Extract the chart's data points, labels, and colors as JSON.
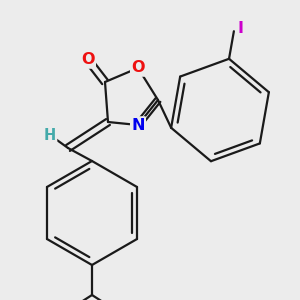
{
  "bg_color": "#ececec",
  "bond_color": "#1a1a1a",
  "line_width": 1.6,
  "atom_colors": {
    "O": "#ee1111",
    "N": "#0000ee",
    "I": "#cc00cc",
    "H": "#44aaaa",
    "C": "#1a1a1a"
  },
  "font_size": 10.5
}
